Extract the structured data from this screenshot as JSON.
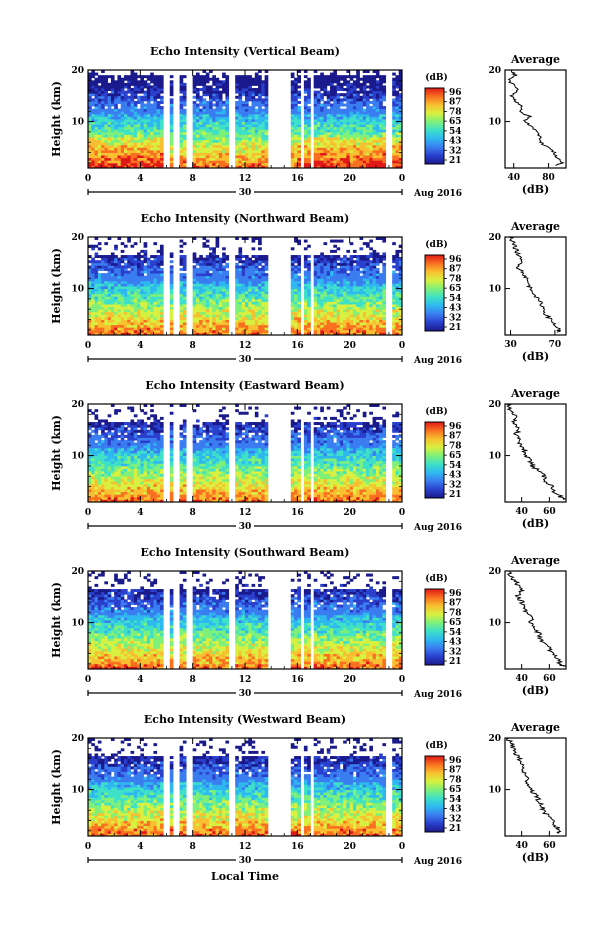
{
  "figure": {
    "xlabel": "Local Time",
    "date_day": "30",
    "date_label": "Aug 2016",
    "colorbar_unit": "(dB)",
    "colorbar_ticks": [
      "96",
      "87",
      "78",
      "65",
      "54",
      "43",
      "32",
      "21"
    ],
    "colormap": [
      "#1a1a8c",
      "#2a3fcc",
      "#3a7df0",
      "#2fb8f0",
      "#3ee0c8",
      "#7ff07a",
      "#d8f040",
      "#f8c030",
      "#f87020",
      "#e01818"
    ]
  },
  "chart_data": [
    {
      "type": "heatmap",
      "title": "Echo Intensity (Vertical Beam)",
      "ylabel": "Height (km)",
      "xlabel": "",
      "xticks": [
        "0",
        "4",
        "8",
        "12",
        "16",
        "20",
        "0"
      ],
      "yticks": [
        "20",
        "10"
      ],
      "xlim": [
        0,
        24
      ],
      "ylim": [
        1,
        20
      ],
      "gaps_hours": [
        [
          5.8,
          6.3
        ],
        [
          6.6,
          7.0
        ],
        [
          7.4,
          7.9
        ],
        [
          10.8,
          11.3
        ],
        [
          13.7,
          15.6
        ],
        [
          16.2,
          16.6
        ],
        [
          17.0,
          17.3
        ],
        [
          22.8,
          23.2
        ]
      ],
      "avg_profile": {
        "title": "Average",
        "xlabel": "(dB)",
        "xticks": [
          "40",
          "80"
        ],
        "yticks": [
          "20",
          "10"
        ],
        "xlim": [
          30,
          100
        ],
        "heights_km": [
          20,
          19,
          18,
          17,
          16,
          15,
          14,
          13,
          12,
          11,
          10,
          9,
          8,
          7,
          6,
          5,
          4,
          3,
          2,
          1.5
        ],
        "values_db": [
          36,
          42,
          34,
          40,
          45,
          38,
          42,
          50,
          46,
          58,
          52,
          62,
          66,
          72,
          70,
          80,
          86,
          90,
          96,
          88
        ]
      }
    },
    {
      "type": "heatmap",
      "title": "Echo Intensity (Northward Beam)",
      "ylabel": "Height (km)",
      "xlabel": "",
      "xticks": [
        "0",
        "4",
        "8",
        "12",
        "16",
        "20",
        "0"
      ],
      "yticks": [
        "20",
        "10"
      ],
      "xlim": [
        0,
        24
      ],
      "ylim": [
        1,
        20
      ],
      "gaps_hours": [
        [
          5.8,
          6.3
        ],
        [
          6.6,
          7.0
        ],
        [
          7.4,
          7.9
        ],
        [
          10.8,
          11.3
        ],
        [
          13.7,
          15.6
        ],
        [
          16.2,
          16.6
        ],
        [
          17.0,
          17.3
        ],
        [
          22.8,
          23.2
        ]
      ],
      "avg_profile": {
        "title": "Average",
        "xlabel": "(dB)",
        "xticks": [
          "30",
          "70"
        ],
        "yticks": [
          "20",
          "10"
        ],
        "xlim": [
          25,
          80
        ],
        "heights_km": [
          20,
          19,
          18,
          17,
          16,
          15,
          14,
          13,
          12,
          11,
          10,
          9,
          8,
          7,
          6,
          5,
          4,
          3,
          2,
          1.5
        ],
        "values_db": [
          30,
          32,
          34,
          36,
          38,
          40,
          37,
          42,
          44,
          46,
          48,
          52,
          54,
          58,
          60,
          62,
          66,
          70,
          74,
          72
        ]
      }
    },
    {
      "type": "heatmap",
      "title": "Echo Intensity (Eastward Beam)",
      "ylabel": "Height (km)",
      "xlabel": "",
      "xticks": [
        "0",
        "4",
        "8",
        "12",
        "16",
        "20",
        "0"
      ],
      "yticks": [
        "20",
        "10"
      ],
      "xlim": [
        0,
        24
      ],
      "ylim": [
        1,
        20
      ],
      "gaps_hours": [
        [
          5.8,
          6.3
        ],
        [
          6.6,
          7.0
        ],
        [
          7.4,
          7.9
        ],
        [
          10.8,
          11.3
        ],
        [
          13.7,
          15.6
        ],
        [
          16.2,
          16.6
        ],
        [
          17.0,
          17.3
        ],
        [
          22.8,
          23.2
        ]
      ],
      "avg_profile": {
        "title": "Average",
        "xlabel": "(dB)",
        "xticks": [
          "40",
          "60"
        ],
        "yticks": [
          "20",
          "10"
        ],
        "xlim": [
          28,
          72
        ],
        "heights_km": [
          20,
          19,
          18,
          17,
          16,
          15,
          14,
          13,
          12,
          11,
          10,
          9,
          8,
          7,
          6,
          5,
          4,
          3,
          2,
          1.5
        ],
        "values_db": [
          30,
          32,
          35,
          34,
          36,
          38,
          35,
          40,
          38,
          42,
          44,
          46,
          48,
          52,
          56,
          58,
          62,
          64,
          68,
          70
        ]
      }
    },
    {
      "type": "heatmap",
      "title": "Echo Intensity (Southward Beam)",
      "ylabel": "Height (km)",
      "xlabel": "",
      "xticks": [
        "0",
        "4",
        "8",
        "12",
        "16",
        "20",
        "0"
      ],
      "yticks": [
        "20",
        "10"
      ],
      "xlim": [
        0,
        24
      ],
      "ylim": [
        1,
        20
      ],
      "gaps_hours": [
        [
          5.8,
          6.3
        ],
        [
          6.6,
          7.0
        ],
        [
          7.4,
          7.9
        ],
        [
          10.8,
          11.3
        ],
        [
          13.7,
          15.6
        ],
        [
          16.2,
          16.6
        ],
        [
          17.0,
          17.3
        ],
        [
          22.8,
          23.2
        ]
      ],
      "avg_profile": {
        "title": "Average",
        "xlabel": "(dB)",
        "xticks": [
          "40",
          "60"
        ],
        "yticks": [
          "20",
          "10"
        ],
        "xlim": [
          28,
          72
        ],
        "heights_km": [
          20,
          19,
          18,
          17,
          16,
          15,
          14,
          13,
          12,
          11,
          10,
          9,
          8,
          7,
          6,
          5,
          4,
          3,
          2,
          1.5
        ],
        "values_db": [
          30,
          32,
          36,
          38,
          40,
          37,
          40,
          42,
          44,
          46,
          47,
          50,
          52,
          54,
          56,
          60,
          62,
          66,
          68,
          70
        ]
      }
    },
    {
      "type": "heatmap",
      "title": "Echo Intensity (Westward Beam)",
      "ylabel": "Height (km)",
      "xlabel": "",
      "xticks": [
        "0",
        "4",
        "8",
        "12",
        "16",
        "20",
        "0"
      ],
      "yticks": [
        "20",
        "10"
      ],
      "xlim": [
        0,
        24
      ],
      "ylim": [
        1,
        20
      ],
      "gaps_hours": [
        [
          5.8,
          6.3
        ],
        [
          6.6,
          7.0
        ],
        [
          7.4,
          7.9
        ],
        [
          10.8,
          11.3
        ],
        [
          13.7,
          15.6
        ],
        [
          16.2,
          16.6
        ],
        [
          17.0,
          17.3
        ],
        [
          22.8,
          23.2
        ]
      ],
      "avg_profile": {
        "title": "Average",
        "xlabel": "(dB)",
        "xticks": [
          "40",
          "60"
        ],
        "yticks": [
          "20",
          "10"
        ],
        "xlim": [
          28,
          72
        ],
        "heights_km": [
          20,
          19,
          18,
          17,
          16,
          15,
          14,
          13,
          12,
          11,
          10,
          9,
          8,
          7,
          6,
          5,
          4,
          3,
          2,
          1.5
        ],
        "values_db": [
          30,
          32,
          34,
          36,
          38,
          40,
          41,
          42,
          44,
          45,
          47,
          50,
          52,
          54,
          56,
          58,
          62,
          64,
          68,
          66
        ]
      }
    }
  ]
}
